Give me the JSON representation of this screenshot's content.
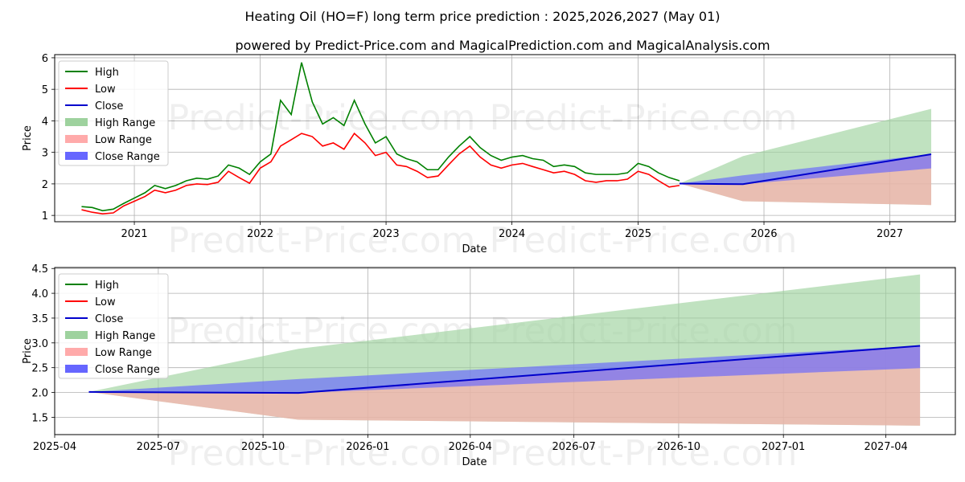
{
  "title": "Heating Oil (HO=F) long term price prediction : 2025,2026,2027 (May 01)",
  "subtitle": "powered by Predict-Price.com and MagicalPrediction.com and MagicalAnalysis.com",
  "watermark": "Predict-Price.com",
  "colors": {
    "high": "#008000",
    "low": "#ff0000",
    "close": "#0000cc",
    "high_range": "#9ed29e",
    "low_range": "#ffaaaa",
    "close_range": "#6666ff",
    "grid": "#b0b0b0"
  },
  "chart_data": [
    {
      "type": "line",
      "xlabel": "Date",
      "ylabel": "Price",
      "xlim": [
        "2020-05-15",
        "2027-07-10"
      ],
      "ylim": [
        0.8,
        6.1
      ],
      "x_ticks": [
        "2021",
        "2022",
        "2023",
        "2024",
        "2025",
        "2026",
        "2027"
      ],
      "x_tick_dates": [
        "2021-01-01",
        "2022-01-01",
        "2023-01-01",
        "2024-01-01",
        "2025-01-01",
        "2026-01-01",
        "2027-01-01"
      ],
      "y_ticks": [
        "1",
        "2",
        "3",
        "4",
        "5",
        "6"
      ],
      "grid": true,
      "legend_position": "top-left",
      "legend": [
        "High",
        "Low",
        "Close",
        "High Range",
        "Low Range",
        "Close Range"
      ],
      "historical": {
        "dates": [
          "2020-08-01",
          "2020-09-01",
          "2020-10-01",
          "2020-11-01",
          "2020-12-01",
          "2021-01-01",
          "2021-02-01",
          "2021-03-01",
          "2021-04-01",
          "2021-05-01",
          "2021-06-01",
          "2021-07-01",
          "2021-08-01",
          "2021-09-01",
          "2021-10-01",
          "2021-11-01",
          "2021-12-01",
          "2022-01-01",
          "2022-02-01",
          "2022-03-01",
          "2022-04-01",
          "2022-05-01",
          "2022-06-01",
          "2022-07-01",
          "2022-08-01",
          "2022-09-01",
          "2022-10-01",
          "2022-11-01",
          "2022-12-01",
          "2023-01-01",
          "2023-02-01",
          "2023-03-01",
          "2023-04-01",
          "2023-05-01",
          "2023-06-01",
          "2023-07-01",
          "2023-08-01",
          "2023-09-01",
          "2023-10-01",
          "2023-11-01",
          "2023-12-01",
          "2024-01-01",
          "2024-02-01",
          "2024-03-01",
          "2024-04-01",
          "2024-05-01",
          "2024-06-01",
          "2024-07-01",
          "2024-08-01",
          "2024-09-01",
          "2024-10-01",
          "2024-11-01",
          "2024-12-01",
          "2025-01-01",
          "2025-02-01",
          "2025-03-01",
          "2025-04-01",
          "2025-05-01"
        ],
        "high": [
          1.28,
          1.25,
          1.15,
          1.2,
          1.38,
          1.55,
          1.72,
          1.95,
          1.85,
          1.95,
          2.1,
          2.18,
          2.15,
          2.25,
          2.6,
          2.5,
          2.3,
          2.7,
          2.95,
          4.65,
          4.2,
          5.85,
          4.6,
          3.9,
          4.1,
          3.85,
          4.65,
          3.9,
          3.3,
          3.5,
          2.95,
          2.8,
          2.7,
          2.45,
          2.45,
          2.85,
          3.2,
          3.5,
          3.15,
          2.9,
          2.75,
          2.85,
          2.9,
          2.8,
          2.75,
          2.55,
          2.6,
          2.55,
          2.35,
          2.3,
          2.3,
          2.3,
          2.35,
          2.65,
          2.55,
          2.35,
          2.2,
          2.1
        ],
        "low": [
          1.18,
          1.1,
          1.05,
          1.08,
          1.3,
          1.45,
          1.6,
          1.8,
          1.72,
          1.8,
          1.95,
          2.0,
          1.98,
          2.05,
          2.4,
          2.2,
          2.02,
          2.5,
          2.7,
          3.2,
          3.4,
          3.6,
          3.5,
          3.2,
          3.3,
          3.1,
          3.6,
          3.3,
          2.9,
          3.0,
          2.6,
          2.55,
          2.4,
          2.2,
          2.25,
          2.6,
          2.95,
          3.2,
          2.85,
          2.6,
          2.5,
          2.6,
          2.65,
          2.55,
          2.45,
          2.35,
          2.4,
          2.3,
          2.1,
          2.05,
          2.1,
          2.1,
          2.15,
          2.4,
          2.3,
          2.1,
          1.9,
          1.95
        ]
      },
      "forecast": {
        "dates": [
          "2025-05-01",
          "2025-11-01",
          "2027-05-01"
        ],
        "close": [
          2.01,
          1.99,
          2.94
        ],
        "high_range_upper": [
          2.01,
          2.88,
          4.38
        ],
        "low_range_lower": [
          2.01,
          1.45,
          1.33
        ],
        "close_range_upper": [
          2.01,
          2.27,
          2.94
        ],
        "close_range_lower": [
          2.01,
          1.99,
          2.49
        ]
      }
    },
    {
      "type": "area",
      "xlabel": "Date",
      "ylabel": "Price",
      "xlim": [
        "2025-04-01",
        "2027-06-01"
      ],
      "ylim": [
        1.15,
        4.52
      ],
      "x_ticks": [
        "2025-04",
        "2025-07",
        "2025-10",
        "2026-01",
        "2026-04",
        "2026-07",
        "2026-10",
        "2027-01",
        "2027-04"
      ],
      "x_tick_dates": [
        "2025-04-01",
        "2025-07-01",
        "2025-10-01",
        "2026-01-01",
        "2026-04-01",
        "2026-07-01",
        "2026-10-01",
        "2027-01-01",
        "2027-04-01"
      ],
      "y_ticks": [
        "1.5",
        "2.0",
        "2.5",
        "3.0",
        "3.5",
        "4.0",
        "4.5"
      ],
      "grid": true,
      "legend_position": "top-left",
      "legend": [
        "High",
        "Low",
        "Close",
        "High Range",
        "Low Range",
        "Close Range"
      ],
      "forecast": {
        "dates": [
          "2025-05-01",
          "2025-11-01",
          "2027-05-01"
        ],
        "close": [
          2.01,
          1.99,
          2.94
        ],
        "high_range_upper": [
          2.01,
          2.88,
          4.38
        ],
        "low_range_lower": [
          2.01,
          1.45,
          1.33
        ],
        "close_range_upper": [
          2.01,
          2.27,
          2.94
        ],
        "close_range_lower": [
          2.01,
          1.99,
          2.49
        ]
      }
    }
  ]
}
